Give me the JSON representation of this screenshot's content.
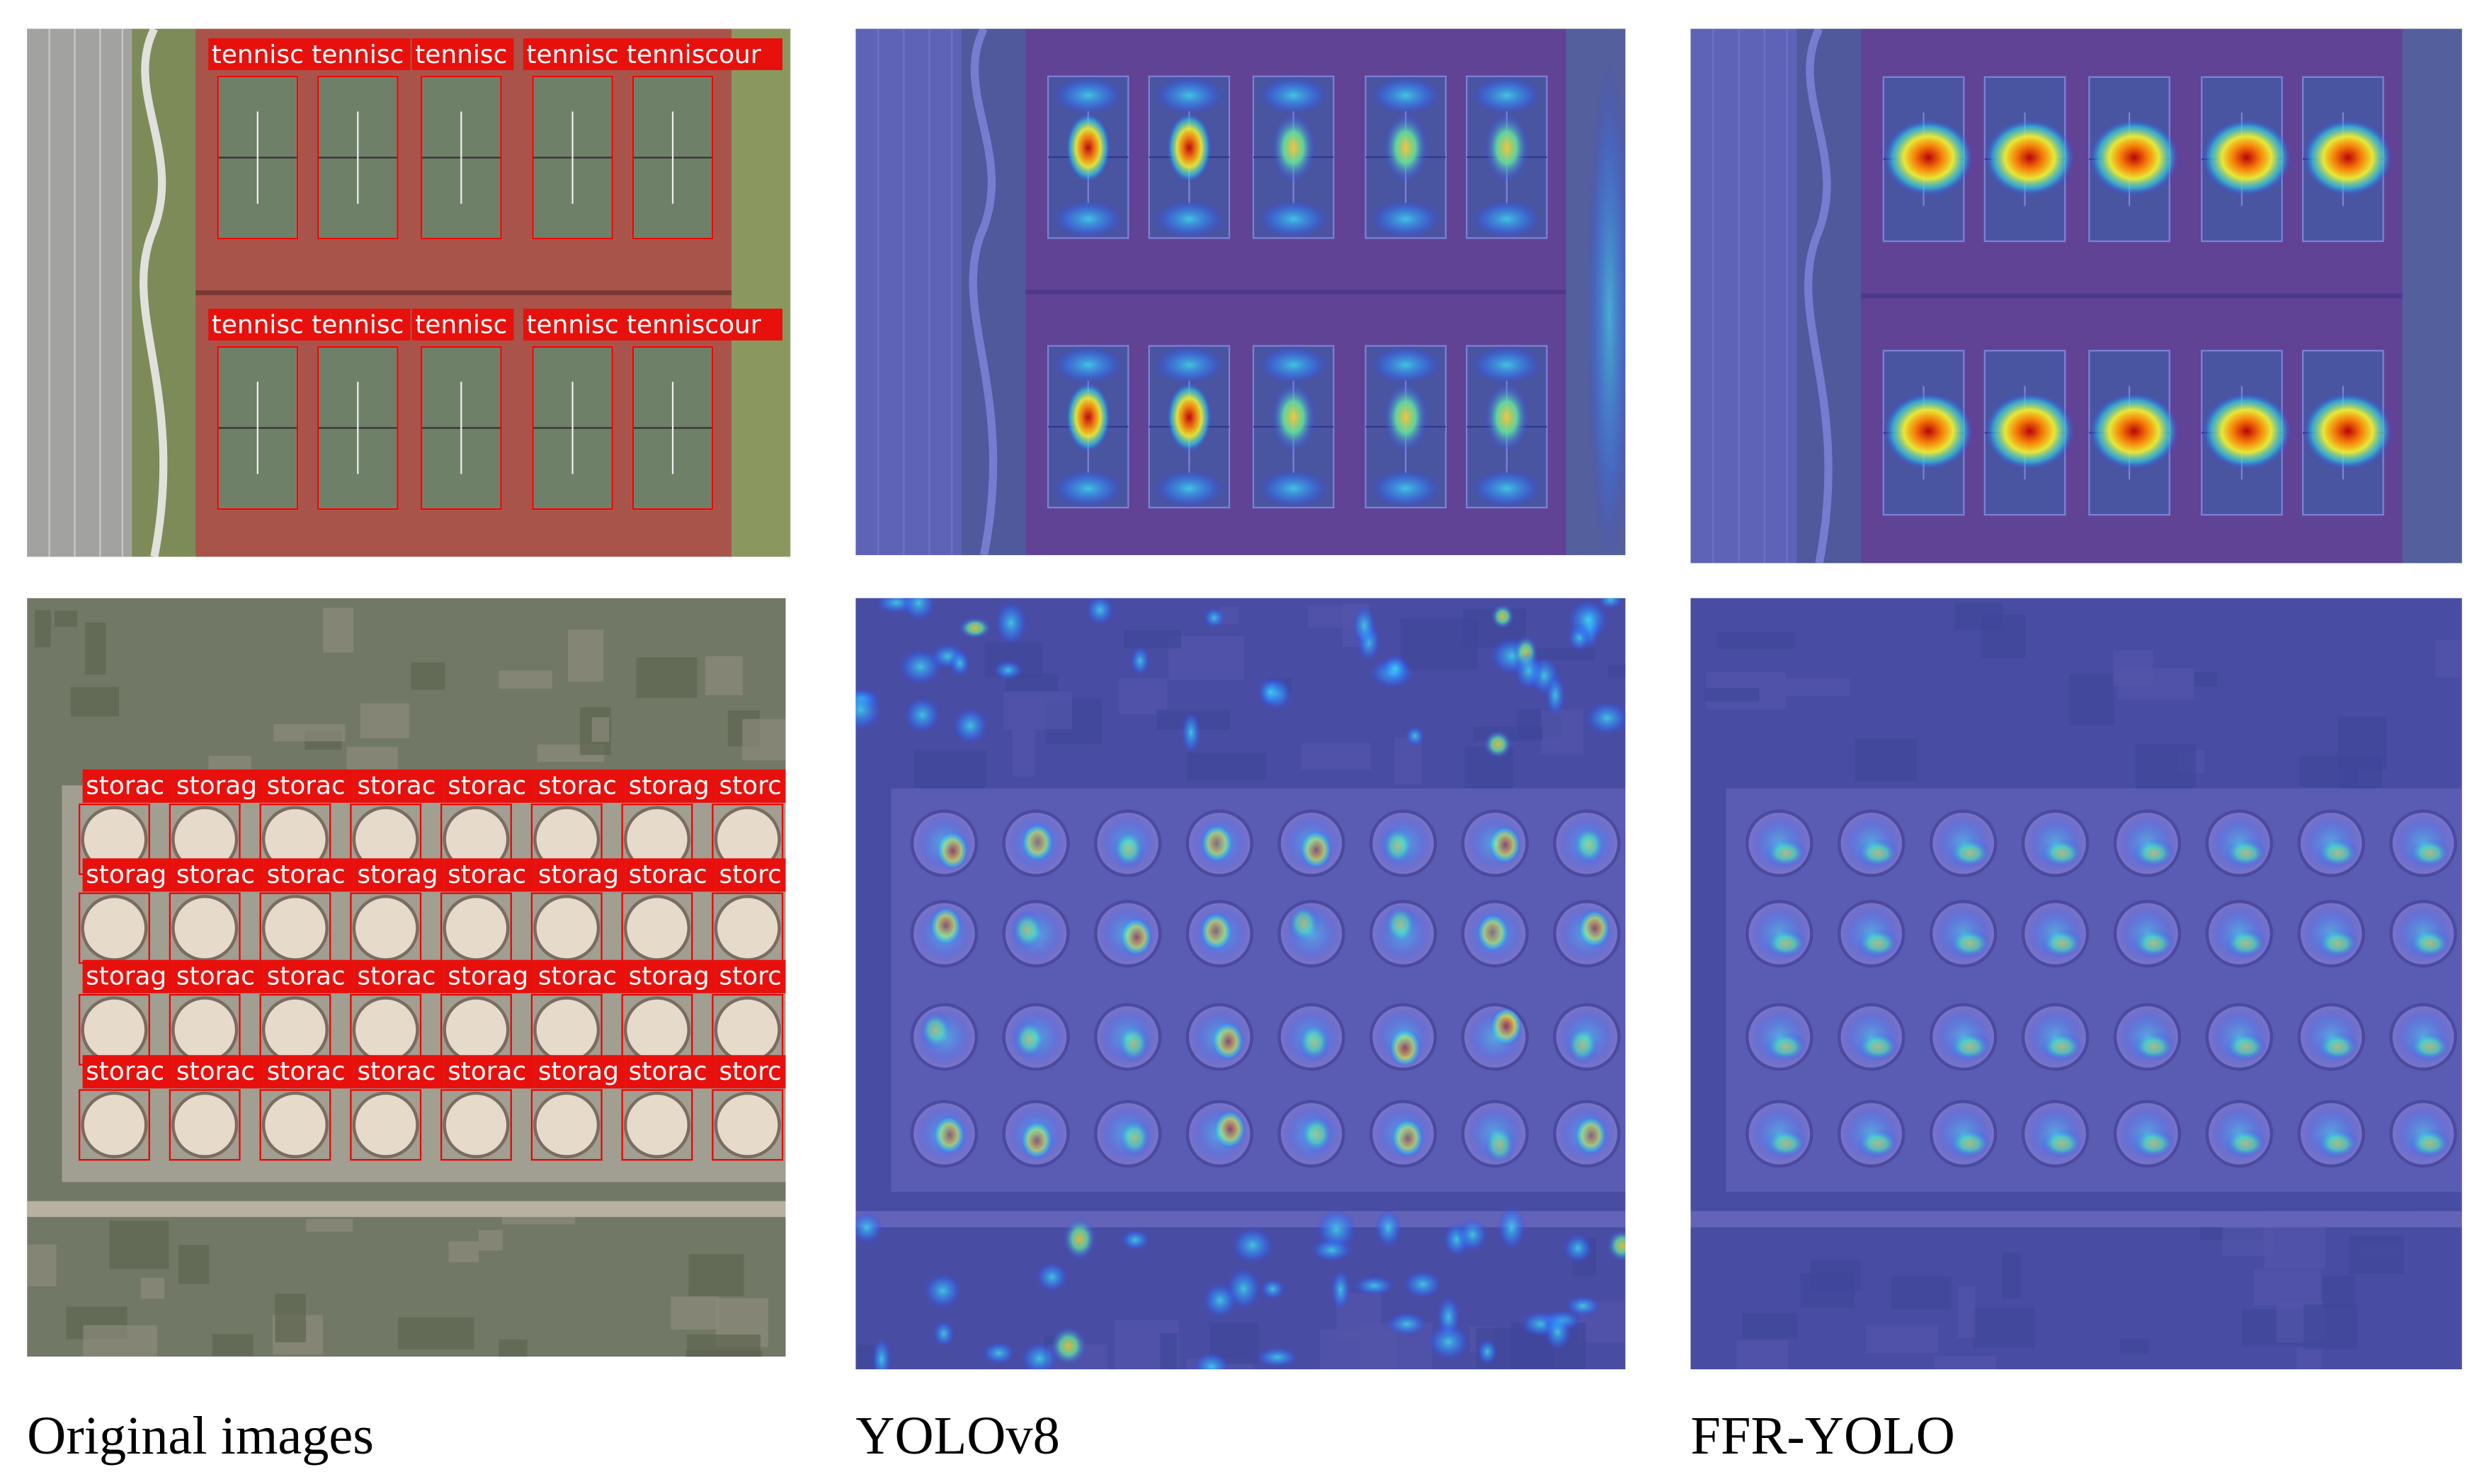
{
  "captions": [
    "Original images",
    "YOLOv8",
    "FFR-YOLO"
  ],
  "detections": {
    "tennis": [
      [
        "tennisc",
        "tennisc",
        "tennisc",
        "tennisc",
        "tenniscour"
      ],
      [
        "tennisc",
        "tennisc",
        "tennisc",
        "tennisc",
        "tenniscour"
      ]
    ],
    "storage": [
      [
        "storac",
        "storag",
        "storac",
        "storac",
        "storac",
        "storac",
        "storag",
        "storc"
      ],
      [
        "storag",
        "storac",
        "storac",
        "storag",
        "storac",
        "storag",
        "storac",
        "storc"
      ],
      [
        "storag",
        "storac",
        "storac",
        "storac",
        "storag",
        "storac",
        "storag",
        "storc"
      ],
      [
        "storac",
        "storac",
        "storac",
        "storac",
        "storac",
        "storag",
        "storac",
        "storc"
      ]
    ]
  }
}
